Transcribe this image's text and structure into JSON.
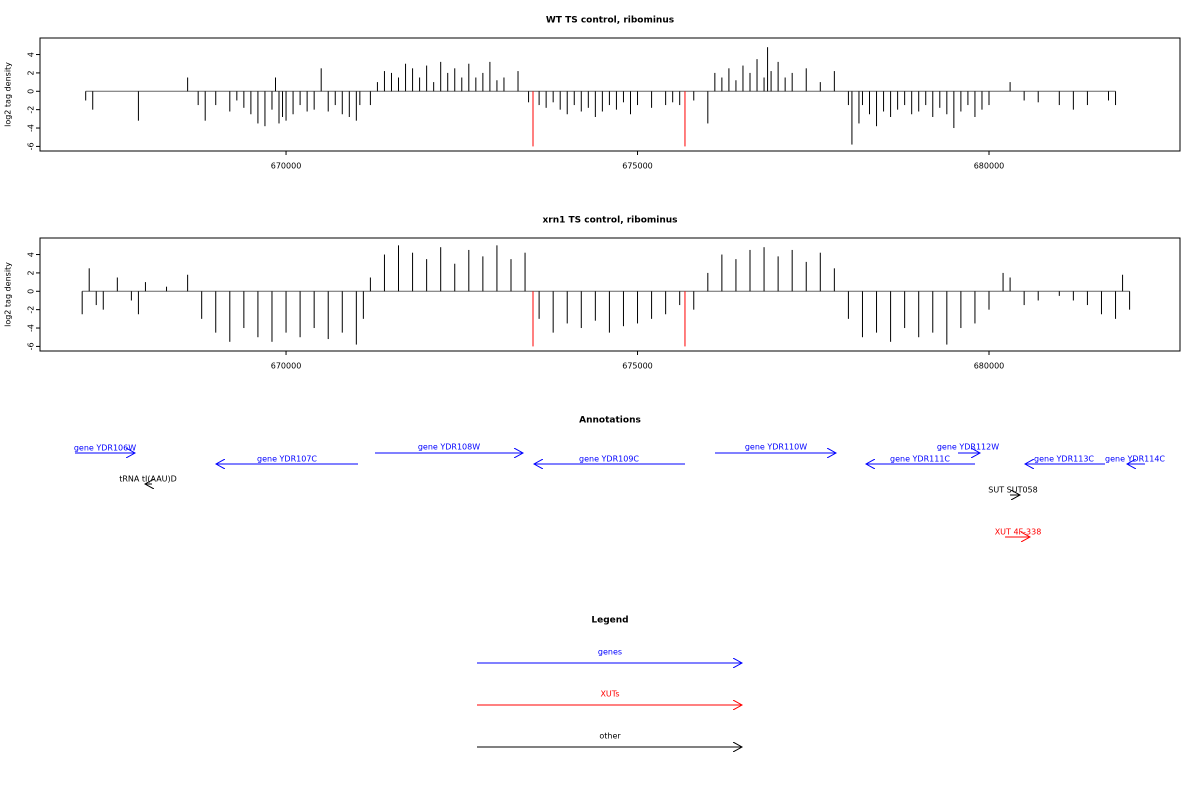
{
  "chart_data": [
    {
      "type": "bar",
      "title": "WT TS control, ribominus",
      "y_label": "log2 tag density",
      "xlim": [
        666500,
        682717
      ],
      "ylim": [
        -6.5,
        5.8
      ],
      "xticks": [
        670000,
        675000,
        680000
      ],
      "yticks": [
        -6,
        -4,
        -2,
        0,
        2,
        4
      ],
      "series": [
        {
          "color": "#000000",
          "x": [
            667150,
            667250,
            667900,
            668600,
            668750,
            668850,
            669000,
            669200,
            669300,
            669400,
            669500,
            669600,
            669700,
            669800,
            669850,
            669900,
            669950,
            670000,
            670100,
            670200,
            670300,
            670400,
            670500,
            670600,
            670700,
            670800,
            670900,
            671000,
            671050,
            671200,
            671300,
            671400,
            671500,
            671600,
            671700,
            671800,
            671900,
            672000,
            672100,
            672200,
            672300,
            672400,
            672500,
            672600,
            672700,
            672800,
            672900,
            673000,
            673100,
            673300,
            673450,
            673600,
            673700,
            673800,
            673900,
            674000,
            674100,
            674200,
            674300,
            674400,
            674500,
            674600,
            674700,
            674800,
            674900,
            675000,
            675200,
            675400,
            675500,
            675600,
            675800,
            676000,
            676100,
            676200,
            676300,
            676400,
            676500,
            676600,
            676700,
            676800,
            676850,
            676900,
            677000,
            677100,
            677200,
            677400,
            677600,
            677800,
            678000,
            678050,
            678150,
            678200,
            678300,
            678400,
            678500,
            678600,
            678700,
            678800,
            678900,
            679000,
            679100,
            679200,
            679300,
            679400,
            679500,
            679600,
            679700,
            679800,
            679900,
            680000,
            680300,
            680500,
            680700,
            681000,
            681200,
            681400,
            681700,
            681800
          ],
          "values": [
            -1,
            -2,
            -3.2,
            1.5,
            -1.5,
            -3.2,
            -1.5,
            -2.2,
            -1,
            -1.8,
            -2.5,
            -3.5,
            -3.8,
            -2,
            1.5,
            -3.5,
            -2.8,
            -3.2,
            -2.5,
            -1.5,
            -2.2,
            -2,
            2.5,
            -2.2,
            -1.5,
            -2.5,
            -2.8,
            -3.2,
            -1.5,
            -1.5,
            1,
            2.2,
            2,
            1.5,
            3,
            2.5,
            1.5,
            2.8,
            1,
            3.2,
            2,
            2.5,
            1.5,
            3,
            1.5,
            2,
            3.2,
            1.2,
            1.5,
            2.2,
            -1.2,
            -1.5,
            -1.8,
            -1.2,
            -2,
            -2.5,
            -1.5,
            -2.2,
            -1.8,
            -2.8,
            -2.2,
            -1.5,
            -2,
            -1.2,
            -2.5,
            -1.5,
            -1.8,
            -1.5,
            -1.2,
            -1.5,
            -1,
            -3.5,
            2,
            1.5,
            2.5,
            1.2,
            2.8,
            2,
            3.5,
            1.5,
            4.8,
            2.2,
            3.2,
            1.5,
            2,
            2.5,
            1,
            2.2,
            -1.5,
            -5.8,
            -3.5,
            -1.5,
            -2.5,
            -3.8,
            -2.2,
            -2.8,
            -2,
            -1.5,
            -2.5,
            -2.2,
            -1.5,
            -2.8,
            -1.8,
            -2.5,
            -4,
            -2.2,
            -1.5,
            -2.8,
            -2,
            -1.5,
            1,
            -1,
            -1.2,
            -1.5,
            -2,
            -1.5,
            -1,
            -1.5
          ]
        },
        {
          "color": "#ff0000",
          "x": [
            673513,
            675675
          ],
          "values": [
            -6,
            -6
          ]
        }
      ]
    },
    {
      "type": "bar",
      "title": "xrn1 TS control, ribominus",
      "y_label": "log2 tag density",
      "xlim": [
        666500,
        682717
      ],
      "ylim": [
        -6.5,
        5.8
      ],
      "xticks": [
        670000,
        675000,
        680000
      ],
      "yticks": [
        -6,
        -4,
        -2,
        0,
        2,
        4
      ],
      "series": [
        {
          "color": "#000000",
          "x": [
            667100,
            667200,
            667300,
            667400,
            667600,
            667800,
            667900,
            668000,
            668300,
            668600,
            668800,
            669000,
            669200,
            669400,
            669600,
            669800,
            670000,
            670200,
            670400,
            670600,
            670800,
            671000,
            671100,
            671200,
            671400,
            671600,
            671800,
            672000,
            672200,
            672400,
            672600,
            672800,
            673000,
            673200,
            673400,
            673600,
            673800,
            674000,
            674200,
            674400,
            674600,
            674800,
            675000,
            675200,
            675400,
            675600,
            675800,
            676000,
            676200,
            676400,
            676600,
            676800,
            677000,
            677200,
            677400,
            677600,
            677800,
            678000,
            678200,
            678400,
            678600,
            678800,
            679000,
            679200,
            679400,
            679600,
            679800,
            680000,
            680200,
            680300,
            680500,
            680700,
            681000,
            681200,
            681400,
            681600,
            681800,
            681900,
            682000
          ],
          "values": [
            -2.5,
            2.5,
            -1.5,
            -2,
            1.5,
            -1,
            -2.5,
            1,
            0.5,
            1.8,
            -3,
            -4.5,
            -5.5,
            -4,
            -5,
            -5.5,
            -4.5,
            -5,
            -4,
            -5.2,
            -4.5,
            -5.8,
            -3,
            1.5,
            4,
            5,
            4.2,
            3.5,
            4.8,
            3,
            4.5,
            3.8,
            5,
            3.5,
            4.2,
            -3,
            -4.5,
            -3.5,
            -4,
            -3.2,
            -4.5,
            -3.8,
            -3.5,
            -3,
            -2.5,
            -1.5,
            -2,
            2,
            4,
            3.5,
            4.5,
            4.8,
            3.8,
            4.5,
            3.2,
            4.2,
            2.5,
            -3,
            -5,
            -4.5,
            -5.5,
            -4,
            -5,
            -4.5,
            -5.8,
            -4,
            -3.5,
            -2,
            2,
            1.5,
            -1.5,
            -1,
            -0.5,
            -1,
            -1.5,
            -2.5,
            -3,
            1.8,
            -2
          ]
        },
        {
          "color": "#ff0000",
          "x": [
            673513,
            675675
          ],
          "values": [
            -6,
            -6
          ]
        }
      ]
    }
  ],
  "annotations": {
    "title": "Annotations",
    "items": [
      {
        "label": "gene YDR106W",
        "color": "#0000ff"
      },
      {
        "label": "gene YDR107C",
        "color": "#0000ff"
      },
      {
        "label": "gene YDR108W",
        "color": "#0000ff"
      },
      {
        "label": "gene YDR109C",
        "color": "#0000ff"
      },
      {
        "label": "gene YDR110W",
        "color": "#0000ff"
      },
      {
        "label": "gene YDR111C",
        "color": "#0000ff"
      },
      {
        "label": "gene YDR112W",
        "color": "#0000ff"
      },
      {
        "label": "gene YDR113C",
        "color": "#0000ff"
      },
      {
        "label": "gene YDR114C",
        "color": "#0000ff"
      },
      {
        "label": "tRNA tI(AAU)D",
        "color": "#000000"
      },
      {
        "label": "SUT SUT058",
        "color": "#000000"
      },
      {
        "label": "XUT 4F-338",
        "color": "#ff0000"
      }
    ]
  },
  "legend": {
    "title": "Legend",
    "items": [
      {
        "label": "genes",
        "color": "#0000ff"
      },
      {
        "label": "XUTs",
        "color": "#ff0000"
      },
      {
        "label": "other",
        "color": "#000000"
      }
    ]
  }
}
